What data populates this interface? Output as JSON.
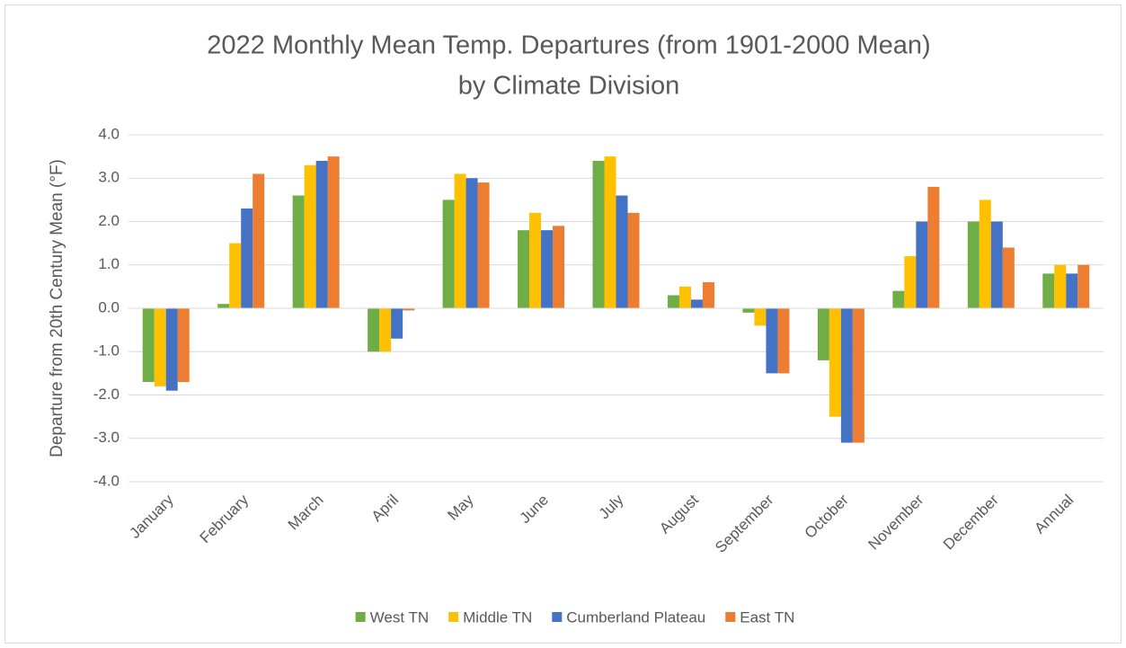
{
  "chart_data": {
    "type": "bar",
    "title": [
      "2022 Monthly Mean Temp. Departures (from 1901-2000 Mean)",
      "by Climate Division"
    ],
    "y_label": "Departure from 20th Century Mean (°F)",
    "categories": [
      "January",
      "February",
      "March",
      "April",
      "May",
      "June",
      "July",
      "August",
      "September",
      "October",
      "November",
      "December",
      "Annual"
    ],
    "series": [
      {
        "name": "West TN",
        "color": "#70ad47",
        "values": [
          -1.7,
          0.1,
          2.6,
          -1.0,
          2.5,
          1.8,
          3.4,
          0.3,
          -0.1,
          -1.2,
          0.4,
          2.0,
          0.8
        ]
      },
      {
        "name": "Middle TN",
        "color": "#ffc000",
        "values": [
          -1.8,
          1.5,
          3.3,
          -1.0,
          3.1,
          2.2,
          3.5,
          0.5,
          -0.4,
          -2.5,
          1.2,
          2.5,
          1.0
        ]
      },
      {
        "name": "Cumberland Plateau",
        "color": "#4472c4",
        "values": [
          -1.9,
          2.3,
          3.4,
          -0.7,
          3.0,
          1.8,
          2.6,
          0.2,
          -1.5,
          -3.1,
          2.0,
          2.0,
          0.8
        ]
      },
      {
        "name": "East TN",
        "color": "#ed7d31",
        "values": [
          -1.7,
          3.1,
          3.5,
          -0.05,
          2.9,
          1.9,
          2.2,
          0.6,
          -1.5,
          -3.1,
          2.8,
          1.4,
          1.0
        ]
      }
    ],
    "ylim": [
      -4,
      4
    ],
    "yticks": [
      {
        "value": -4,
        "label": "-4.0"
      },
      {
        "value": -3,
        "label": "-3.0"
      },
      {
        "value": -2,
        "label": "-2.0"
      },
      {
        "value": -1,
        "label": "-1.0"
      },
      {
        "value": 0,
        "label": "0.0"
      },
      {
        "value": 1,
        "label": "1.0"
      },
      {
        "value": 2,
        "label": "2.0"
      },
      {
        "value": 3,
        "label": "3.0"
      },
      {
        "value": 4,
        "label": "4.0"
      }
    ],
    "grid": true,
    "legend": "bottom"
  }
}
